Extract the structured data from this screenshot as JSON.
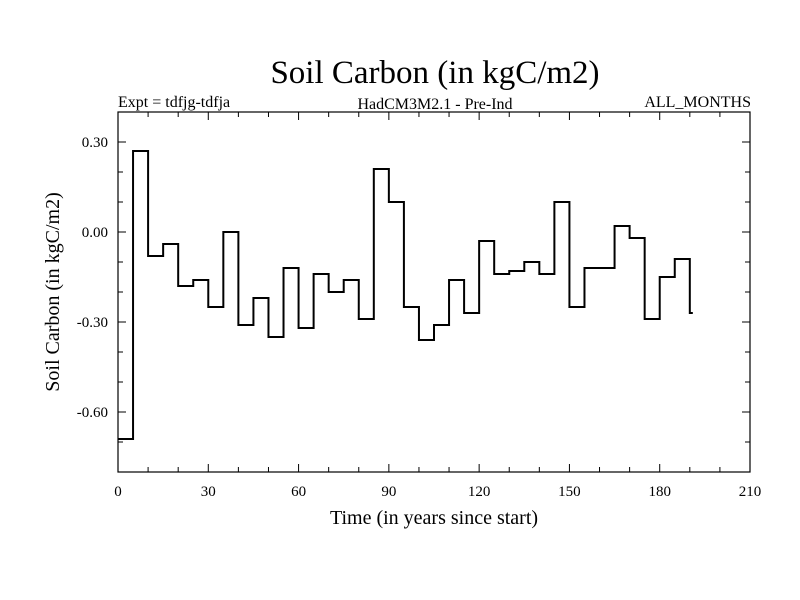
{
  "chart_data": {
    "type": "line",
    "style": "step",
    "title": "Soil Carbon (in kgC/m2)",
    "subtitle_left": "Expt = tdfjg-tdfja",
    "subtitle_center": "HadCM3M2.1 - Pre-Ind",
    "subtitle_right": "ALL_MONTHS",
    "xlabel": "Time (in years since start)",
    "ylabel": "Soil Carbon (in kgC/m2)",
    "xlim": [
      0,
      210
    ],
    "ylim": [
      -0.8,
      0.4
    ],
    "xticks": [
      0,
      30,
      60,
      90,
      120,
      150,
      180,
      210
    ],
    "xtick_labels": [
      "0",
      "30",
      "60",
      "90",
      "120",
      "150",
      "180",
      "210"
    ],
    "yticks": [
      0.3,
      0.0,
      -0.3,
      -0.6
    ],
    "ytick_labels": [
      "0.30",
      "0.00",
      "-0.30",
      "-0.60"
    ],
    "grid": false,
    "line_color": "#000000",
    "series": [
      {
        "x": [
          0,
          5,
          10,
          15,
          20,
          25,
          30,
          35,
          40,
          45,
          50,
          55,
          60,
          65,
          70,
          75,
          80,
          85,
          90,
          95,
          100,
          105,
          110,
          115,
          120,
          125,
          130,
          135,
          140,
          145,
          150,
          155,
          160,
          165,
          170,
          175,
          180,
          185,
          190
        ],
        "values": [
          -0.69,
          0.27,
          -0.08,
          -0.04,
          -0.18,
          -0.16,
          -0.25,
          0.0,
          -0.31,
          -0.22,
          -0.35,
          -0.12,
          -0.32,
          -0.14,
          -0.2,
          -0.16,
          -0.29,
          0.21,
          0.1,
          -0.25,
          -0.36,
          -0.31,
          -0.16,
          -0.27,
          -0.03,
          -0.14,
          -0.13,
          -0.1,
          -0.14,
          0.1,
          -0.25,
          -0.12,
          -0.12,
          0.02,
          -0.02,
          -0.29,
          -0.15,
          -0.09,
          -0.27
        ]
      }
    ]
  }
}
